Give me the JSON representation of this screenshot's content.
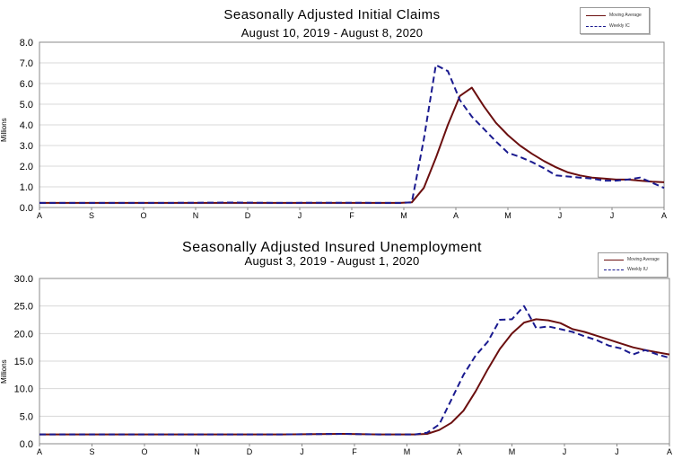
{
  "chart_data": [
    {
      "type": "line",
      "title": "Seasonally Adjusted Initial Claims",
      "subtitle": "August 10, 2019 - August 8, 2020",
      "ylabel": "Millions",
      "xlabel": "",
      "ylim": [
        0,
        8
      ],
      "yticks": [
        "0.0",
        "1.0",
        "2.0",
        "3.0",
        "4.0",
        "5.0",
        "6.0",
        "7.0",
        "8.0"
      ],
      "xticks": [
        "A",
        "S",
        "O",
        "N",
        "D",
        "J",
        "F",
        "M",
        "A",
        "M",
        "J",
        "J",
        "A"
      ],
      "grid": true,
      "legend_position": "top-right",
      "series": [
        {
          "name": "Moving Average",
          "style": "solid",
          "color": "#6b0f0f",
          "points": [
            [
              0,
              0.22
            ],
            [
              10,
              0.22
            ],
            [
              20,
              0.22
            ],
            [
              30,
              0.22
            ],
            [
              31,
              0.25
            ],
            [
              32,
              0.95
            ],
            [
              33,
              2.4
            ],
            [
              34,
              4.0
            ],
            [
              35,
              5.4
            ],
            [
              36,
              5.8
            ],
            [
              37,
              4.9
            ],
            [
              38,
              4.1
            ],
            [
              39,
              3.5
            ],
            [
              40,
              3.0
            ],
            [
              41,
              2.6
            ],
            [
              42,
              2.25
            ],
            [
              43,
              1.95
            ],
            [
              44,
              1.7
            ],
            [
              45,
              1.55
            ],
            [
              46,
              1.45
            ],
            [
              47,
              1.4
            ],
            [
              48,
              1.35
            ],
            [
              49,
              1.35
            ],
            [
              50,
              1.3
            ],
            [
              51,
              1.25
            ],
            [
              52,
              1.22
            ]
          ]
        },
        {
          "name": "Weekly IC",
          "style": "dashed",
          "color": "#1a1a8f",
          "points": [
            [
              0,
              0.22
            ],
            [
              10,
              0.22
            ],
            [
              16,
              0.24
            ],
            [
              20,
              0.22
            ],
            [
              24,
              0.23
            ],
            [
              30,
              0.22
            ],
            [
              31,
              0.25
            ],
            [
              32,
              3.3
            ],
            [
              33,
              6.9
            ],
            [
              34,
              6.6
            ],
            [
              35,
              5.2
            ],
            [
              36,
              4.4
            ],
            [
              37,
              3.8
            ],
            [
              38,
              3.2
            ],
            [
              39,
              2.65
            ],
            [
              40,
              2.45
            ],
            [
              41,
              2.2
            ],
            [
              42,
              1.9
            ],
            [
              43,
              1.55
            ],
            [
              44,
              1.5
            ],
            [
              45,
              1.45
            ],
            [
              46,
              1.4
            ],
            [
              47,
              1.3
            ],
            [
              48,
              1.3
            ],
            [
              49,
              1.35
            ],
            [
              50,
              1.45
            ],
            [
              51,
              1.2
            ],
            [
              52,
              0.95
            ]
          ]
        }
      ]
    },
    {
      "type": "line",
      "title": "Seasonally Adjusted Insured Unemployment",
      "subtitle": "August 3, 2019 - August 1, 2020",
      "ylabel": "Millions",
      "xlabel": "",
      "ylim": [
        0,
        30
      ],
      "yticks": [
        "0.0",
        "5.0",
        "10.0",
        "15.0",
        "20.0",
        "25.0",
        "30.0"
      ],
      "xticks": [
        "A",
        "S",
        "O",
        "N",
        "D",
        "J",
        "F",
        "M",
        "A",
        "M",
        "J",
        "J",
        "A"
      ],
      "grid": true,
      "legend_position": "top-right",
      "series": [
        {
          "name": "Moving Average",
          "style": "solid",
          "color": "#6b0f0f",
          "points": [
            [
              0,
              1.7
            ],
            [
              10,
              1.7
            ],
            [
              20,
              1.7
            ],
            [
              25,
              1.8
            ],
            [
              28,
              1.7
            ],
            [
              31,
              1.7
            ],
            [
              32,
              1.8
            ],
            [
              33,
              2.5
            ],
            [
              34,
              3.8
            ],
            [
              35,
              6.0
            ],
            [
              36,
              9.5
            ],
            [
              37,
              13.5
            ],
            [
              38,
              17.2
            ],
            [
              39,
              20.0
            ],
            [
              40,
              22.0
            ],
            [
              41,
              22.6
            ],
            [
              42,
              22.4
            ],
            [
              43,
              21.9
            ],
            [
              44,
              20.8
            ],
            [
              45,
              20.3
            ],
            [
              46,
              19.6
            ],
            [
              47,
              18.9
            ],
            [
              48,
              18.2
            ],
            [
              49,
              17.5
            ],
            [
              50,
              17.0
            ],
            [
              51,
              16.6
            ],
            [
              52,
              16.2
            ]
          ]
        },
        {
          "name": "Weekly IU",
          "style": "dashed",
          "color": "#1a1a8f",
          "points": [
            [
              0,
              1.7
            ],
            [
              10,
              1.7
            ],
            [
              20,
              1.7
            ],
            [
              25,
              1.8
            ],
            [
              28,
              1.7
            ],
            [
              31,
              1.7
            ],
            [
              32,
              2.0
            ],
            [
              33,
              3.5
            ],
            [
              34,
              8.0
            ],
            [
              35,
              12.5
            ],
            [
              36,
              16.0
            ],
            [
              37,
              18.5
            ],
            [
              38,
              22.5
            ],
            [
              39,
              22.6
            ],
            [
              40,
              25.0
            ],
            [
              41,
              21.0
            ],
            [
              42,
              21.3
            ],
            [
              43,
              20.8
            ],
            [
              44,
              20.3
            ],
            [
              45,
              19.5
            ],
            [
              46,
              18.8
            ],
            [
              47,
              17.8
            ],
            [
              48,
              17.3
            ],
            [
              49,
              16.2
            ],
            [
              50,
              17.0
            ],
            [
              51,
              16.2
            ],
            [
              52,
              15.6
            ]
          ]
        }
      ]
    }
  ]
}
